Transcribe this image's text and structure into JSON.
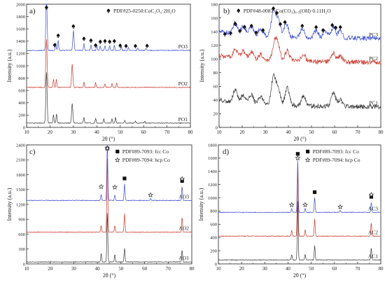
{
  "panels": [
    {
      "label": "a)",
      "xlabel": "2θ (°)",
      "ylabel": "Intensity (a.u.)",
      "legend": [
        {
          "marker": "spade",
          "text": "PDF#25-0250:CoC₂O₄·2H₂O"
        }
      ],
      "xticks": [
        "10",
        "20",
        "30",
        "40",
        "50",
        "60",
        "70",
        "80"
      ],
      "yticks": [
        "0",
        "200",
        "400",
        "600",
        "800",
        "1000",
        "1200",
        "1400",
        "1600",
        "1800",
        "2000"
      ]
    },
    {
      "label": "b)",
      "xlabel": "2θ (°)",
      "ylabel": "Intensity (a.u.)",
      "legend": [
        {
          "marker": "spade",
          "text": "PDF#48-0083: Co(CO₃)₀.₅(OH)·0.11H₂O"
        }
      ],
      "xticks": [
        "10",
        "20",
        "30",
        "40",
        "50",
        "60",
        "70",
        "80"
      ],
      "yticks": [
        "0",
        "20",
        "40",
        "60",
        "80",
        "100",
        "120",
        "140",
        "160",
        "180"
      ]
    },
    {
      "label": "c)",
      "xlabel": "2θ (°)",
      "ylabel": "Intensity (a.u.)",
      "legend": [
        {
          "marker": "square",
          "text": "PDF#89-7093: fcc Co"
        },
        {
          "marker": "star",
          "text": "PDF#89-7094: hcp Co"
        }
      ],
      "xticks": [
        "10",
        "20",
        "30",
        "40",
        "50",
        "60",
        "70",
        "80"
      ],
      "yticks": [
        "0",
        "300",
        "600",
        "900",
        "1200",
        "1500",
        "1800",
        "2100",
        "2400"
      ]
    },
    {
      "label": "d)",
      "xlabel": "2θ (°)",
      "ylabel": "Intensity (a.u.)",
      "legend": [
        {
          "marker": "square",
          "text": "PDF#89-7093: fcc Co"
        },
        {
          "marker": "star",
          "text": "PDF#89-7094: hcp Co"
        }
      ],
      "xticks": [
        "10",
        "20",
        "30",
        "40",
        "50",
        "60",
        "70",
        "80"
      ],
      "yticks": [
        "0",
        "200",
        "400",
        "600",
        "800",
        "1000",
        "1200",
        "1400",
        "1600",
        "1800"
      ]
    }
  ],
  "chart_data": [
    {
      "type": "line",
      "title": "a)",
      "xlabel": "2θ (°)",
      "ylabel": "Intensity (a.u.)",
      "xlim": [
        10,
        80
      ],
      "ylim": [
        0,
        2000
      ],
      "grid": false,
      "legend_position": "top-right",
      "series": [
        {
          "name": "PO3",
          "color": "#3d4fd1",
          "baseline": 1250,
          "peaks": [
            [
              18.5,
              890
            ],
            [
              22.5,
              120
            ],
            [
              23.5,
              170
            ],
            [
              30.0,
              320
            ],
            [
              34.5,
              120
            ],
            [
              37.5,
              90
            ],
            [
              40.0,
              90
            ],
            [
              41.5,
              70
            ],
            [
              43.5,
              80
            ],
            [
              45.5,
              70
            ],
            [
              47.5,
              80
            ],
            [
              50.5,
              60
            ],
            [
              53.5,
              50
            ],
            [
              57.5,
              40
            ],
            [
              61.0,
              30
            ]
          ]
        },
        {
          "name": "PO2",
          "color": "#c8392b",
          "baseline": 650,
          "peaks": [
            [
              18.5,
              780
            ],
            [
              21.5,
              130
            ],
            [
              22.7,
              130
            ],
            [
              29.5,
              380
            ],
            [
              34.5,
              90
            ],
            [
              39.5,
              70
            ],
            [
              43.5,
              60
            ],
            [
              46.5,
              60
            ],
            [
              48.5,
              70
            ]
          ]
        },
        {
          "name": "PO1",
          "color": "#3a3a3a",
          "baseline": 70,
          "peaks": [
            [
              18.5,
              820
            ],
            [
              21.5,
              140
            ],
            [
              22.8,
              150
            ],
            [
              29.5,
              320
            ],
            [
              34.5,
              100
            ],
            [
              39.5,
              80
            ],
            [
              43.0,
              70
            ],
            [
              46.5,
              70
            ],
            [
              48.0,
              90
            ],
            [
              52.0,
              40
            ],
            [
              56.5,
              30
            ],
            [
              60.5,
              30
            ]
          ]
        }
      ],
      "markers": [
        {
          "symbol": "spade",
          "x": [
            18.5,
            22.0,
            23.5,
            30.0,
            34.5,
            37.5,
            39.5,
            41.5,
            43.5,
            45.5,
            47.5,
            50.0,
            52.5,
            56.5,
            61.5
          ]
        }
      ]
    },
    {
      "type": "line",
      "title": "b)",
      "xlabel": "2θ (°)",
      "ylabel": "Intensity (a.u.)",
      "xlim": [
        10,
        80
      ],
      "ylim": [
        0,
        180
      ],
      "grid": false,
      "legend_position": "top-right",
      "series": [
        {
          "name": "PC3",
          "color": "#3d4fd1",
          "baseline": 130,
          "peaks": [
            [
              17.0,
              15
            ],
            [
              20.5,
              12
            ],
            [
              24.0,
              12
            ],
            [
              28.0,
              10
            ],
            [
              33.5,
              35
            ],
            [
              35.5,
              25
            ],
            [
              39.0,
              20
            ],
            [
              46.0,
              12
            ],
            [
              52.0,
              10
            ],
            [
              56.0,
              10
            ],
            [
              59.5,
              15
            ],
            [
              62.5,
              10
            ]
          ]
        },
        {
          "name": "PC2",
          "color": "#c8392b",
          "baseline": 95,
          "peaks": [
            [
              17.0,
              12
            ],
            [
              20.5,
              10
            ],
            [
              24.0,
              10
            ],
            [
              28.0,
              8
            ],
            [
              34.0,
              25
            ],
            [
              35.5,
              20
            ],
            [
              39.5,
              15
            ],
            [
              46.5,
              10
            ],
            [
              59.5,
              12
            ],
            [
              62.5,
              8
            ]
          ]
        },
        {
          "name": "PC1",
          "color": "#3a3a3a",
          "baseline": 30,
          "peaks": [
            [
              17.0,
              18
            ],
            [
              20.5,
              12
            ],
            [
              24.0,
              12
            ],
            [
              28.0,
              10
            ],
            [
              33.5,
              40
            ],
            [
              35.5,
              25
            ],
            [
              39.5,
              25
            ],
            [
              46.5,
              15
            ],
            [
              59.5,
              20
            ],
            [
              62.5,
              10
            ]
          ]
        }
      ],
      "markers": [
        {
          "symbol": "spade",
          "x": [
            12.5,
            15.0,
            17.0,
            19.0,
            21.0,
            24.0,
            26.0,
            29.0,
            33.5,
            35.0,
            36.5,
            38.5,
            46.0,
            52.0,
            55.0,
            59.0,
            60.5,
            62.5
          ]
        }
      ]
    },
    {
      "type": "line",
      "title": "c)",
      "xlabel": "2θ (°)",
      "ylabel": "Intensity (a.u.)",
      "xlim": [
        10,
        80
      ],
      "ylim": [
        0,
        2400
      ],
      "grid": false,
      "legend_position": "top-right",
      "series": [
        {
          "name": "AO3",
          "color": "#3d4fd1",
          "baseline": 1280,
          "peaks": [
            [
              41.6,
              120
            ],
            [
              44.2,
              1200
            ],
            [
              47.4,
              110
            ],
            [
              51.5,
              330
            ],
            [
              62.5,
              40
            ],
            [
              75.9,
              280
            ]
          ]
        },
        {
          "name": "AO2",
          "color": "#c8392b",
          "baseline": 640,
          "peaks": [
            [
              41.6,
              130
            ],
            [
              44.2,
              1500
            ],
            [
              47.4,
              130
            ],
            [
              51.5,
              370
            ],
            [
              75.9,
              300
            ]
          ]
        },
        {
          "name": "AO1",
          "color": "#3a3a3a",
          "baseline": 40,
          "peaks": [
            [
              41.6,
              170
            ],
            [
              44.2,
              1000
            ],
            [
              47.4,
              150
            ],
            [
              51.5,
              280
            ],
            [
              75.9,
              240
            ]
          ]
        }
      ],
      "markers": [
        {
          "symbol": "square",
          "x": [
            44.2,
            51.5,
            75.9
          ]
        },
        {
          "symbol": "star",
          "x": [
            41.6,
            44.2,
            47.4,
            62.5,
            75.9
          ]
        }
      ]
    },
    {
      "type": "line",
      "title": "d)",
      "xlabel": "2θ (°)",
      "ylabel": "Intensity (a.u.)",
      "xlim": [
        10,
        80
      ],
      "ylim": [
        0,
        1800
      ],
      "grid": false,
      "legend_position": "top-right",
      "series": [
        {
          "name": "AC3",
          "color": "#3d4fd1",
          "baseline": 780,
          "peaks": [
            [
              41.6,
              60
            ],
            [
              44.2,
              800
            ],
            [
              47.4,
              60
            ],
            [
              51.5,
              220
            ],
            [
              62.5,
              30
            ],
            [
              75.9,
              150
            ]
          ]
        },
        {
          "name": "AC2",
          "color": "#c8392b",
          "baseline": 420,
          "peaks": [
            [
              41.6,
              90
            ],
            [
              44.2,
              1000
            ],
            [
              47.4,
              100
            ],
            [
              51.5,
              260
            ],
            [
              75.9,
              200
            ]
          ]
        },
        {
          "name": "AC1",
          "color": "#3a3a3a",
          "baseline": 60,
          "peaks": [
            [
              41.6,
              80
            ],
            [
              44.2,
              900
            ],
            [
              47.4,
              80
            ],
            [
              51.5,
              220
            ],
            [
              75.9,
              180
            ]
          ]
        }
      ],
      "markers": [
        {
          "symbol": "square",
          "x": [
            44.2,
            51.5,
            75.9
          ]
        },
        {
          "symbol": "star",
          "x": [
            41.6,
            44.2,
            47.4,
            62.5,
            75.9
          ]
        }
      ]
    }
  ]
}
